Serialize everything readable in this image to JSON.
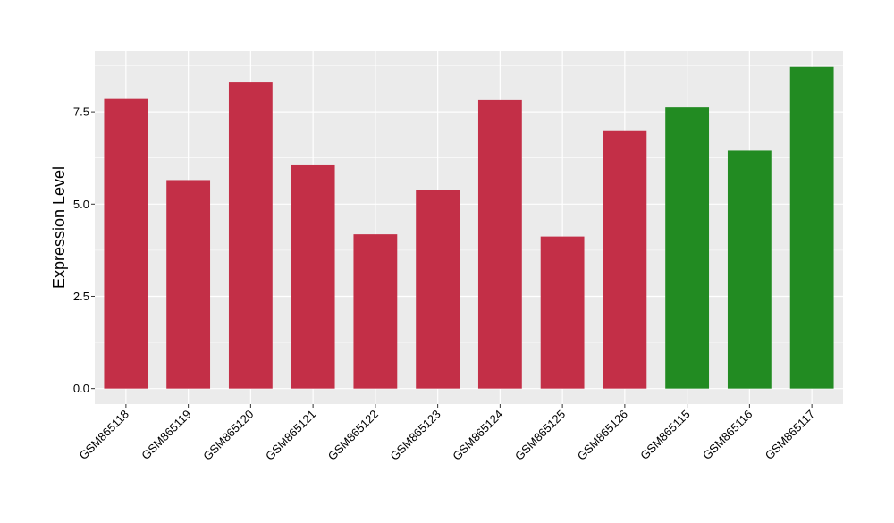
{
  "chart_data": {
    "type": "bar",
    "title": "",
    "xlabel": "",
    "ylabel": "Expression Level",
    "ylim": [
      -0.42,
      9.15
    ],
    "yticks": [
      0.0,
      2.5,
      5.0,
      7.5
    ],
    "ytick_labels": [
      "0.0",
      "2.5",
      "5.0",
      "7.5"
    ],
    "grid": true,
    "legend": "none",
    "categories": [
      "GSM865118",
      "GSM865119",
      "GSM865120",
      "GSM865121",
      "GSM865122",
      "GSM865123",
      "GSM865124",
      "GSM865125",
      "GSM865126",
      "GSM865115",
      "GSM865116",
      "GSM865117"
    ],
    "values": [
      7.85,
      5.65,
      8.3,
      6.05,
      4.18,
      5.38,
      7.82,
      4.12,
      7.0,
      7.62,
      6.45,
      8.72
    ],
    "bar_colors": [
      "#c32f47",
      "#c32f47",
      "#c32f47",
      "#c32f47",
      "#c32f47",
      "#c32f47",
      "#c32f47",
      "#c32f47",
      "#c32f47",
      "#228b22",
      "#228b22",
      "#228b22"
    ],
    "panel_background": "#ebebeb",
    "grid_color": "#ffffff"
  }
}
